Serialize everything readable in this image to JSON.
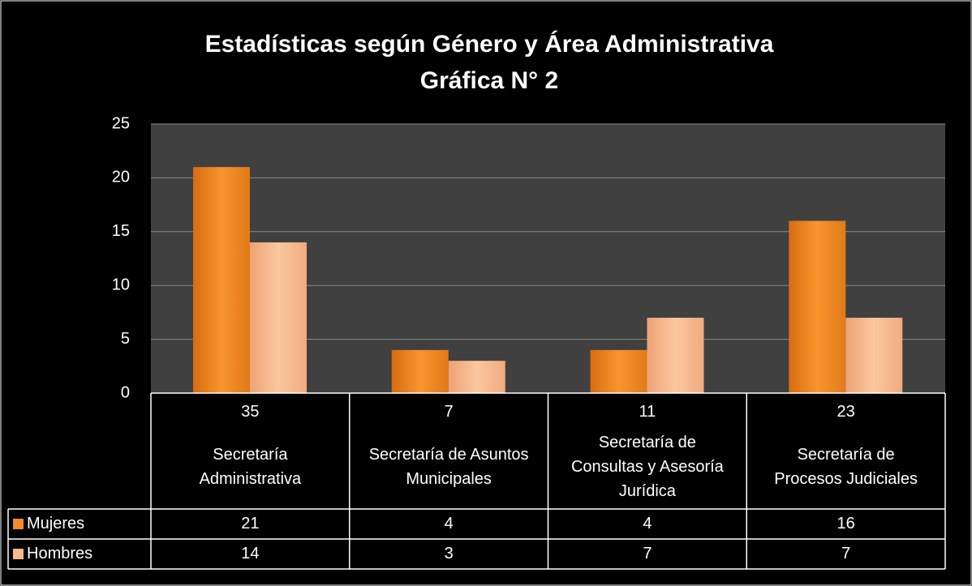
{
  "chart_data": {
    "type": "bar",
    "title": "Estadísticas según Género y Área Administrativa",
    "subtitle": "Gráfica N° 2",
    "categories": [
      "Secretaría Administrativa",
      "Secretaría de Asuntos Municipales",
      "Secretaría de Consultas y Asesoría Jurídica",
      "Secretaría de Procesos Judiciales"
    ],
    "category_totals": [
      35,
      7,
      11,
      23
    ],
    "series": [
      {
        "name": "Mujeres",
        "color": "#f28a25",
        "values": [
          21,
          4,
          4,
          16
        ]
      },
      {
        "name": "Hombres",
        "color": "#f8b98a",
        "values": [
          14,
          3,
          7,
          7
        ]
      }
    ],
    "ylim": [
      0,
      25
    ],
    "yticks": [
      0,
      5,
      10,
      15,
      20,
      25
    ],
    "grid": true
  }
}
